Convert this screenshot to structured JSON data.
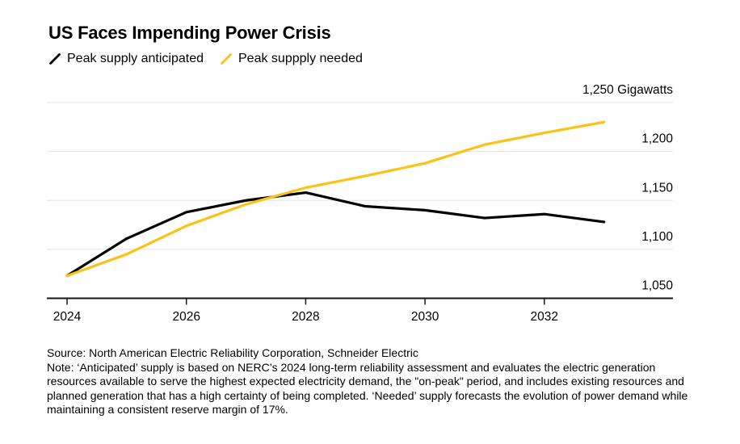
{
  "title": "US Faces Impending Power Crisis",
  "legend": [
    {
      "label": "Peak supply anticipated",
      "color": "#000000"
    },
    {
      "label": "Peak suppply needed",
      "color": "#FCC216"
    }
  ],
  "footer": {
    "source": "Source: North American Electric Reliability Corporation, Schneider Electric",
    "note": "Note: ‘Anticipated’ supply is based on NERC’s 2024 long-term reliability assessment and evaluates the electric generation resources available to serve the highest expected electricity demand, the \"on-peak\" period, and includes existing resources and planned generation that has a high certainty of being completed. ‘Needed’ supply forecasts the evolution of power demand while maintaining a consistent reserve margin of 17%."
  },
  "chart_data": {
    "type": "line",
    "title": "US Faces Impending Power Crisis",
    "x": [
      2024,
      2025,
      2026,
      2027,
      2028,
      2029,
      2030,
      2031,
      2032,
      2033
    ],
    "series": [
      {
        "name": "Peak supply anticipated",
        "color": "#000000",
        "values": [
          1073,
          1111,
          1138,
          1150,
          1158,
          1144,
          1140,
          1132,
          1136,
          1128
        ]
      },
      {
        "name": "Peak suppply needed",
        "color": "#FCC216",
        "values": [
          1073,
          1095,
          1124,
          1146,
          1163,
          1175,
          1188,
          1207,
          1219,
          1230
        ]
      }
    ],
    "ylabel": "Gigawatts",
    "ylim": [
      1050,
      1250
    ],
    "yticks": [
      1050,
      1100,
      1150,
      1200,
      1250
    ],
    "ytick_labels": [
      "1,050",
      "1,100",
      "1,150",
      "1,200",
      "1,250 Gigawatts"
    ],
    "xticks": [
      2024,
      2026,
      2028,
      2030,
      2032
    ],
    "xtick_labels": [
      "2024",
      "2026",
      "2028",
      "2030",
      "2032"
    ],
    "grid": "horizontal",
    "grid_color": "#E4E4E4",
    "axis_color": "#161616",
    "legend_position": "top-left"
  }
}
